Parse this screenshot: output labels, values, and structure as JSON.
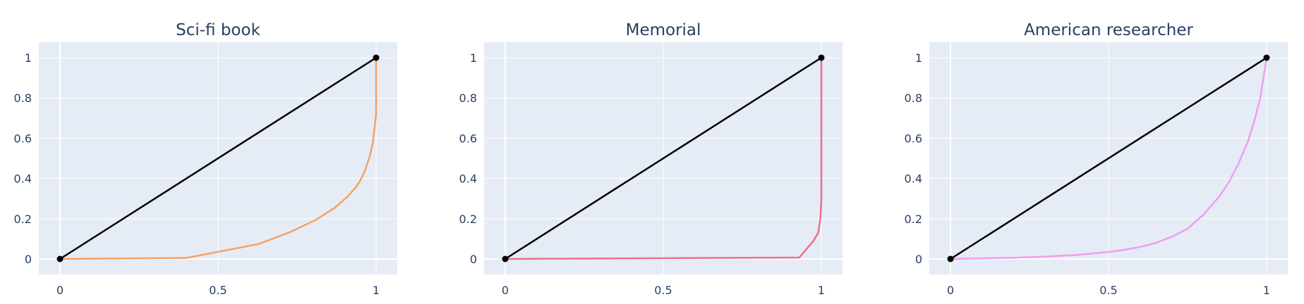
{
  "colors": {
    "plot_bg": "#E5ECF6",
    "grid": "#ffffff",
    "text": "#2a3f5f",
    "diagonal": "#000000"
  },
  "chart_data": [
    {
      "type": "line",
      "title": "Sci-fi book",
      "xlim": [
        0,
        1
      ],
      "ylim": [
        0,
        1
      ],
      "x_ticks": [
        "0",
        "0.5",
        "1"
      ],
      "y_ticks": [
        "0",
        "0.2",
        "0.4",
        "0.6",
        "0.8",
        "1"
      ],
      "grid": true,
      "series": [
        {
          "color": "#000000",
          "markers": true,
          "x": [
            0,
            1
          ],
          "y": [
            0,
            1
          ]
        },
        {
          "color": "#F4A261",
          "markers": false,
          "x": [
            0,
            0.4,
            0.63,
            0.73,
            0.81,
            0.87,
            0.91,
            0.935,
            0.95,
            0.965,
            0.98,
            0.99,
            0.995,
            1.0,
            1.0,
            1.0
          ],
          "y": [
            0,
            0.005,
            0.075,
            0.135,
            0.195,
            0.255,
            0.31,
            0.355,
            0.39,
            0.44,
            0.51,
            0.58,
            0.65,
            0.72,
            0.85,
            1.0
          ]
        }
      ]
    },
    {
      "type": "line",
      "title": "Memorial",
      "xlim": [
        0,
        1
      ],
      "ylim": [
        0,
        1
      ],
      "x_ticks": [
        "0",
        "0.5",
        "1"
      ],
      "y_ticks": [
        "0",
        "0.2",
        "0.4",
        "0.6",
        "0.8",
        "1"
      ],
      "grid": true,
      "series": [
        {
          "color": "#000000",
          "markers": true,
          "x": [
            0,
            1
          ],
          "y": [
            0,
            1
          ]
        },
        {
          "color": "#EF6F85",
          "markers": false,
          "x": [
            0,
            0.93,
            0.975,
            0.99,
            0.997,
            1.0,
            1.0,
            1.0
          ],
          "y": [
            0,
            0.007,
            0.09,
            0.13,
            0.2,
            0.3,
            0.6,
            1.0
          ]
        }
      ]
    },
    {
      "type": "line",
      "title": "American researcher",
      "xlim": [
        0,
        1
      ],
      "ylim": [
        0,
        1
      ],
      "x_ticks": [
        "0",
        "0.5",
        "1"
      ],
      "y_ticks": [
        "0",
        "0.2",
        "0.4",
        "0.6",
        "0.8",
        "1"
      ],
      "grid": true,
      "series": [
        {
          "color": "#000000",
          "markers": true,
          "x": [
            0,
            1
          ],
          "y": [
            0,
            1
          ]
        },
        {
          "color": "#F29CF0",
          "markers": false,
          "x": [
            0,
            0.2,
            0.3,
            0.4,
            0.5,
            0.55,
            0.6,
            0.65,
            0.7,
            0.75,
            0.8,
            0.85,
            0.88,
            0.91,
            0.94,
            0.96,
            0.98,
            0.99,
            1.0
          ],
          "y": [
            0,
            0.006,
            0.012,
            0.02,
            0.035,
            0.045,
            0.06,
            0.08,
            0.11,
            0.15,
            0.22,
            0.31,
            0.38,
            0.47,
            0.58,
            0.68,
            0.8,
            0.9,
            1.0
          ]
        }
      ]
    }
  ]
}
